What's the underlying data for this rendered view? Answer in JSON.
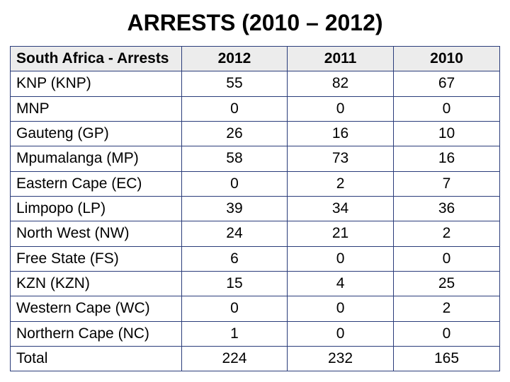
{
  "title": "ARRESTS (2010 – 2012)",
  "table": {
    "columns": [
      "South Africa - Arrests",
      "2012",
      "2011",
      "2010"
    ],
    "rows": [
      [
        "KNP (KNP)",
        "55",
        "82",
        "67"
      ],
      [
        "MNP",
        "0",
        "0",
        "0"
      ],
      [
        "Gauteng (GP)",
        "26",
        "16",
        "10"
      ],
      [
        "Mpumalanga (MP)",
        "58",
        "73",
        "16"
      ],
      [
        "Eastern Cape (EC)",
        "0",
        "2",
        "7"
      ],
      [
        "Limpopo (LP)",
        "39",
        "34",
        "36"
      ],
      [
        "North West (NW)",
        "24",
        "21",
        "2"
      ],
      [
        "Free State (FS)",
        "6",
        "0",
        "0"
      ],
      [
        "KZN (KZN)",
        "15",
        "4",
        "25"
      ],
      [
        "Western Cape (WC)",
        "0",
        "0",
        "2"
      ],
      [
        "Northern Cape (NC)",
        "1",
        "0",
        "0"
      ],
      [
        "Total",
        "224",
        "232",
        "165"
      ]
    ],
    "border_color": "#2a3c7a",
    "header_bg": "#ececec",
    "font_size_pt": 16,
    "title_font_size_pt": 24
  }
}
